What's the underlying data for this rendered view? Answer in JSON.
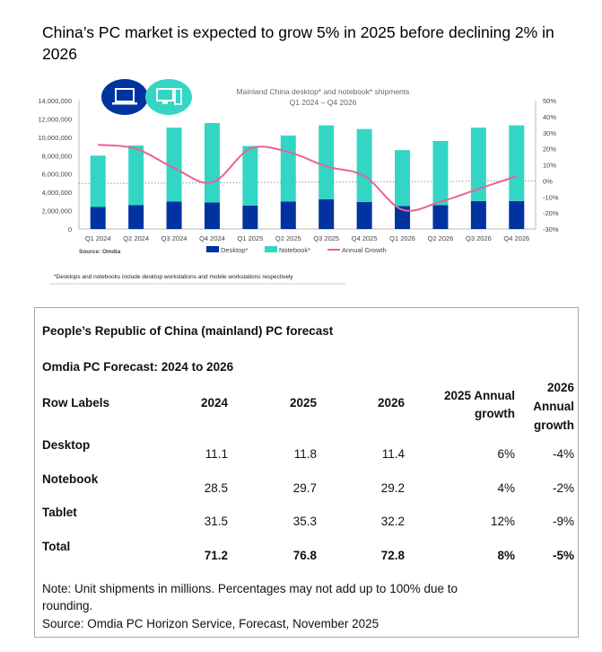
{
  "headline": "China’s PC market is expected to grow 5% in 2025 before declining 2% in 2026",
  "icons": [
    "laptop-icon",
    "desktop-computer-icon"
  ],
  "chart_data": {
    "type": "bar",
    "title": "Mainland China desktop* and notebook* shipments",
    "subtitle": "Q1 2024 – Q4 2026",
    "categories": [
      "Q1 2024",
      "Q2 2024",
      "Q3 2024",
      "Q4 2024",
      "Q1 2025",
      "Q2 2025",
      "Q3 2025",
      "Q4 2025",
      "Q1 2026",
      "Q2 2026",
      "Q3 2026",
      "Q4 2026"
    ],
    "stacked": true,
    "series": [
      {
        "name": "Desktop*",
        "type": "bar",
        "color": "#0033a0",
        "values": [
          2400000,
          2600000,
          3000000,
          2900000,
          2550000,
          3000000,
          3250000,
          2950000,
          2500000,
          2600000,
          3050000,
          3050000
        ]
      },
      {
        "name": "Notebook*",
        "type": "bar",
        "color": "#33d6c4",
        "values": [
          5600000,
          6500000,
          8050000,
          8650000,
          6500000,
          7200000,
          8050000,
          7950000,
          6100000,
          7000000,
          8000000,
          8250000
        ]
      },
      {
        "name": "Annual Growth",
        "type": "line",
        "axis": "right",
        "color": "#e8638f",
        "values": [
          22.5,
          20,
          8,
          -1,
          20,
          18,
          9,
          3,
          -18,
          -13,
          -5,
          3
        ]
      }
    ],
    "ylim": [
      0,
      14000000
    ],
    "yticks": [
      "0",
      "2,000,000",
      "4,000,000",
      "6,000,000",
      "8,000,000",
      "10,000,000",
      "12,000,000",
      "14,000,000"
    ],
    "y2lim": [
      -30,
      50
    ],
    "y2ticks": [
      "-30%",
      "-20%",
      "-10%",
      "0%",
      "10%",
      "20%",
      "30%",
      "40%",
      "50%"
    ],
    "legend_position": "bottom",
    "source": "Source: Omdia",
    "footnote": "*Desktops and notebooks include desktop workstations and mobile workstations respectively"
  },
  "table": {
    "title": "People’s Republic of China (mainland) PC forecast",
    "subtitle": "Omdia PC Forecast: 2024 to 2026",
    "headers": [
      "Row Labels",
      "2024",
      "2025",
      "2026",
      "2025 Annual growth",
      "2026 Annual growth"
    ],
    "rows": [
      {
        "label": "Desktop",
        "values": [
          "11.1",
          "11.8",
          "11.4",
          "6%",
          "-4%"
        ]
      },
      {
        "label": "Notebook",
        "values": [
          "28.5",
          "29.7",
          "29.2",
          "4%",
          "-2%"
        ]
      },
      {
        "label": "Tablet",
        "values": [
          "31.5",
          "35.3",
          "32.2",
          "12%",
          "-9%"
        ]
      },
      {
        "label": "Total",
        "values": [
          "71.2",
          "76.8",
          "72.8",
          "8%",
          "-5%"
        ]
      }
    ],
    "note": "Note: Unit shipments in millions. Percentages may not add up to 100% due to rounding.",
    "source": "Source:  Omdia PC Horizon Service, Forecast, November 2025"
  }
}
